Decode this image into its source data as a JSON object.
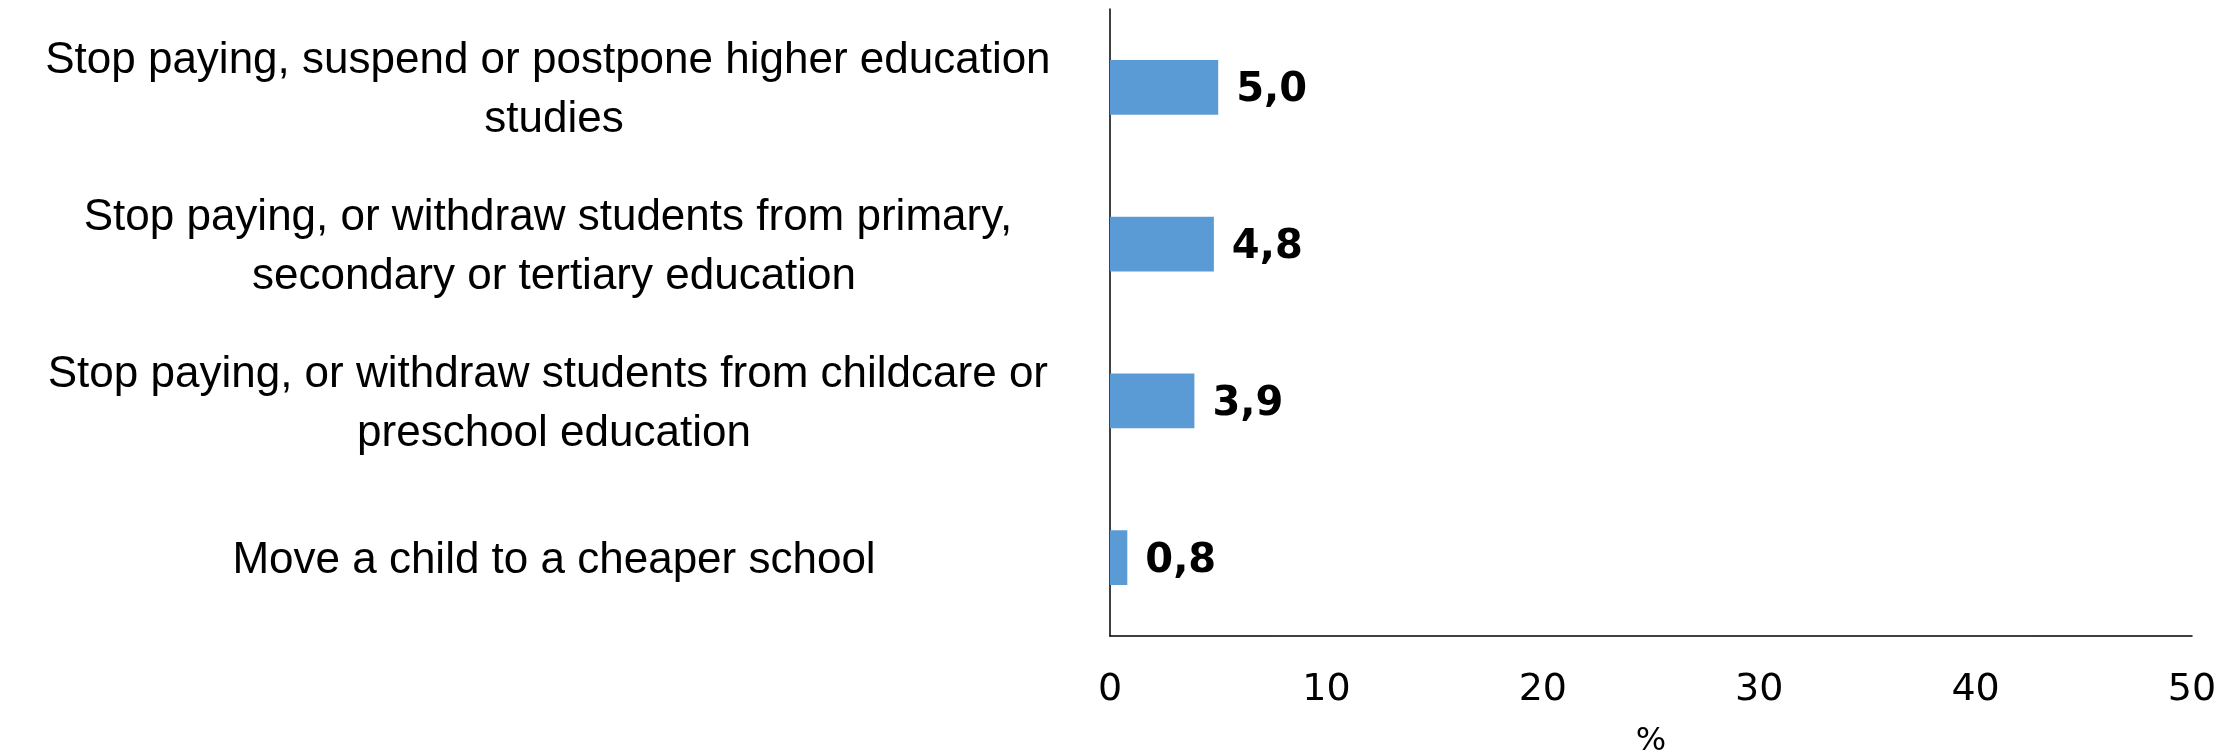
{
  "chart_data": {
    "type": "bar",
    "orientation": "horizontal",
    "categories": [
      "Stop paying, suspend or postpone higher education studies",
      "Stop paying, or withdraw students from primary, secondary or tertiary education",
      "Stop paying, or withdraw students from childcare or preschool education",
      "Move a child to a cheaper school"
    ],
    "values": [
      5.0,
      4.8,
      3.9,
      0.8
    ],
    "value_labels": [
      "5,0",
      "4,8",
      "3,9",
      "0,8"
    ],
    "color": "#5b9bd5",
    "xlabel": "%",
    "xlim": [
      0,
      50
    ],
    "xticks": [
      0,
      10,
      20,
      30,
      40,
      50
    ]
  }
}
